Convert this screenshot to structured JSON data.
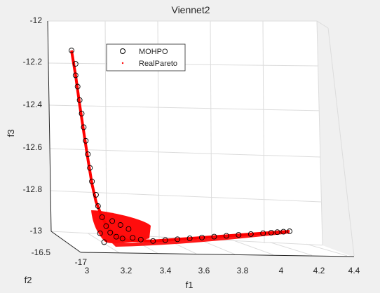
{
  "figure": {
    "background": "#f0f0f0",
    "axes_color": "#ffffff",
    "grid_color": "#dcdcdc",
    "axis_color": "#262626"
  },
  "chart_data": {
    "type": "scatter",
    "title": "Viennet2",
    "xlabel": "f1",
    "ylabel": "f2",
    "zlabel": "f3",
    "grid": true,
    "legend_position": "top-left",
    "axes": {
      "f1": {
        "range": [
          3.0,
          4.4
        ],
        "ticks": [
          "3",
          "3.2",
          "3.4",
          "3.6",
          "3.8",
          "4",
          "4.2",
          "4.4"
        ]
      },
      "f2": {
        "range": [
          -17,
          -16.5
        ],
        "ticks": [
          "-16.5",
          "-17"
        ]
      },
      "f3": {
        "range": [
          -13,
          -12
        ],
        "ticks": [
          "-12",
          "-12.2",
          "-12.4",
          "-12.6",
          "-12.8",
          "-13"
        ]
      }
    },
    "series": [
      {
        "name": "MOHPO",
        "marker": "circle",
        "color": "#000000",
        "points": [
          {
            "f1": 3.0,
            "f3": -12.14
          },
          {
            "f1": 3.02,
            "f3": -12.2
          },
          {
            "f1": 3.02,
            "f3": -12.25
          },
          {
            "f1": 3.03,
            "f3": -12.3
          },
          {
            "f1": 3.04,
            "f3": -12.36
          },
          {
            "f1": 3.05,
            "f3": -12.42
          },
          {
            "f1": 3.06,
            "f3": -12.48
          },
          {
            "f1": 3.07,
            "f3": -12.54
          },
          {
            "f1": 3.08,
            "f3": -12.6
          },
          {
            "f1": 3.09,
            "f3": -12.66
          },
          {
            "f1": 3.1,
            "f3": -12.72
          },
          {
            "f1": 3.12,
            "f3": -12.78
          },
          {
            "f1": 3.13,
            "f3": -12.83
          },
          {
            "f1": 3.15,
            "f3": -12.88
          },
          {
            "f1": 3.17,
            "f3": -12.92
          },
          {
            "f1": 3.19,
            "f3": -12.95
          },
          {
            "f1": 3.22,
            "f3": -12.97
          },
          {
            "f1": 3.25,
            "f3": -12.98
          },
          {
            "f1": 3.2,
            "f3": -12.9
          },
          {
            "f1": 3.24,
            "f3": -12.92
          },
          {
            "f1": 3.28,
            "f3": -12.94
          },
          {
            "f1": 3.16,
            "f3": -12.99
          },
          {
            "f1": 3.14,
            "f3": -12.95
          },
          {
            "f1": 3.3,
            "f3": -12.98
          },
          {
            "f1": 3.34,
            "f3": -12.99
          },
          {
            "f1": 3.4,
            "f3": -13.0
          },
          {
            "f1": 3.46,
            "f3": -13.0
          },
          {
            "f1": 3.52,
            "f3": -13.0
          },
          {
            "f1": 3.58,
            "f3": -13.0
          },
          {
            "f1": 3.64,
            "f3": -13.0
          },
          {
            "f1": 3.7,
            "f3": -13.0
          },
          {
            "f1": 3.76,
            "f3": -13.0
          },
          {
            "f1": 3.82,
            "f3": -13.0
          },
          {
            "f1": 3.88,
            "f3": -13.0
          },
          {
            "f1": 3.94,
            "f3": -13.0
          },
          {
            "f1": 3.98,
            "f3": -13.0
          },
          {
            "f1": 4.01,
            "f3": -13.0
          },
          {
            "f1": 4.04,
            "f3": -13.0
          },
          {
            "f1": 4.07,
            "f3": -13.0
          }
        ]
      },
      {
        "name": "RealPareto",
        "marker": "dot",
        "color": "#ff0000",
        "curve": [
          {
            "f1": 3.0,
            "f3": -12.14
          },
          {
            "f1": 3.02,
            "f3": -12.25
          },
          {
            "f1": 3.04,
            "f3": -12.38
          },
          {
            "f1": 3.06,
            "f3": -12.5
          },
          {
            "f1": 3.08,
            "f3": -12.62
          },
          {
            "f1": 3.1,
            "f3": -12.73
          },
          {
            "f1": 3.12,
            "f3": -12.81
          },
          {
            "f1": 3.15,
            "f3": -12.88
          },
          {
            "f1": 3.18,
            "f3": -12.93
          },
          {
            "f1": 3.22,
            "f3": -12.97
          },
          {
            "f1": 3.28,
            "f3": -12.99
          },
          {
            "f1": 3.4,
            "f3": -13.0
          },
          {
            "f1": 3.6,
            "f3": -13.0
          },
          {
            "f1": 3.8,
            "f3": -13.0
          },
          {
            "f1": 4.0,
            "f3": -13.0
          },
          {
            "f1": 4.07,
            "f3": -13.0
          }
        ]
      }
    ]
  }
}
